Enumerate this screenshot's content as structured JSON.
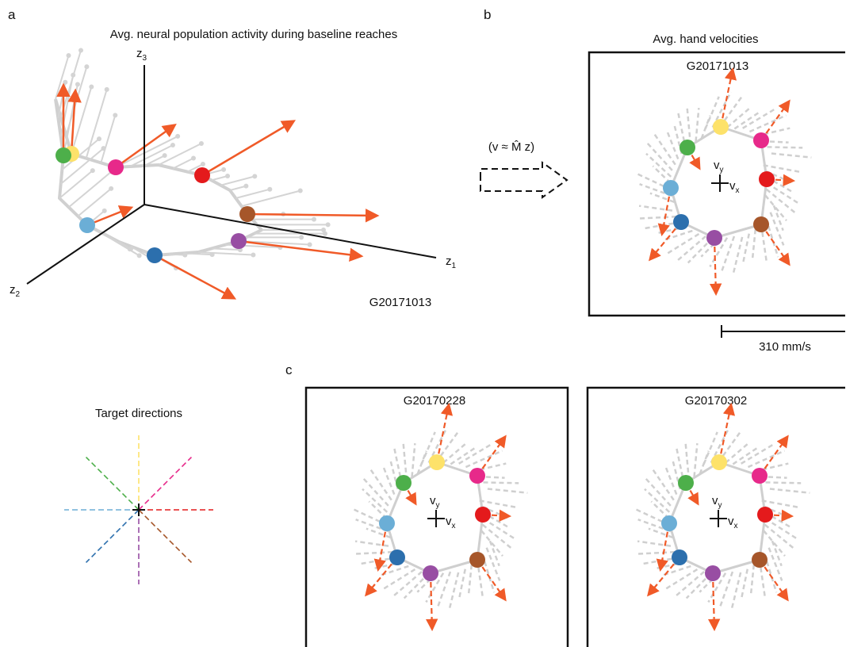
{
  "panel_a": {
    "letter": "a",
    "title": "Avg. neural population activity during baseline reaches",
    "axes": [
      {
        "base": "z",
        "sub": "1"
      },
      {
        "base": "z",
        "sub": "2"
      },
      {
        "base": "z",
        "sub": "3"
      }
    ],
    "session": "G20171013"
  },
  "panel_b": {
    "letter": "b",
    "title": "Avg. hand velocities",
    "session": "G20171013",
    "equation": "(v ≈ M̂ z)",
    "scale_bar": "310 mm/s"
  },
  "panel_c": {
    "letter": "c",
    "sessions": [
      "G20170228",
      "G20170302"
    ]
  },
  "velocity_axes": {
    "x": {
      "base": "v",
      "sub": "x"
    },
    "y": {
      "base": "v",
      "sub": "y"
    }
  },
  "target_directions": {
    "title": "Target directions"
  }
}
